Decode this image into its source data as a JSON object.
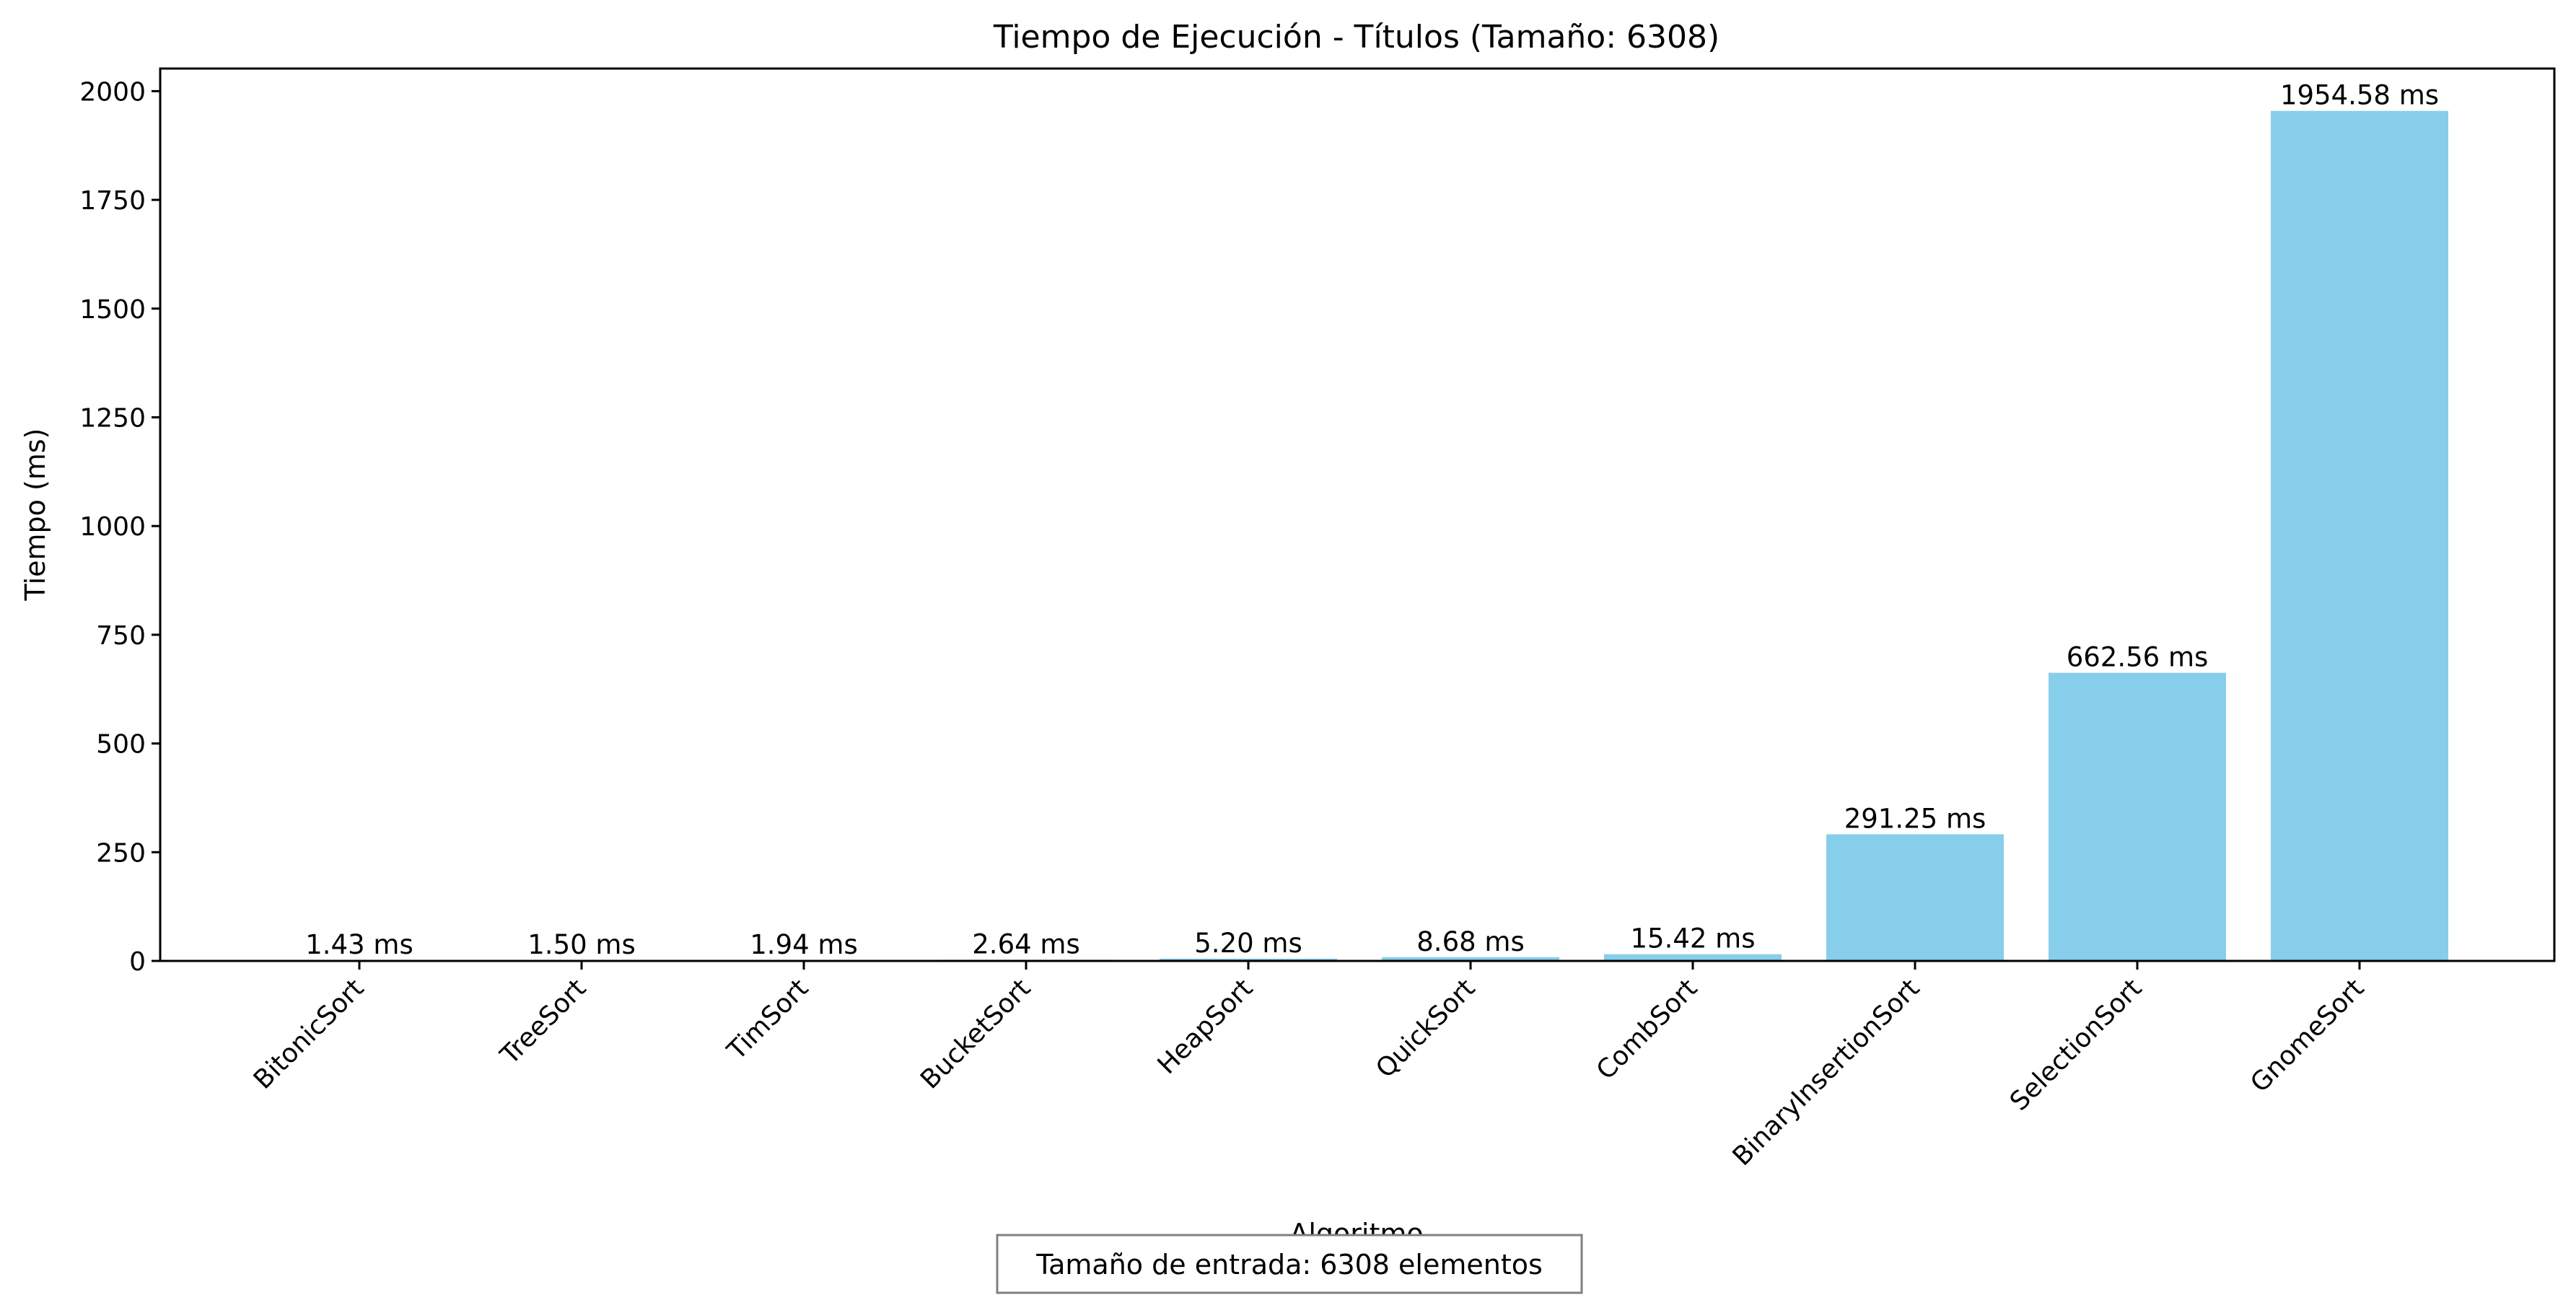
{
  "chart_data": {
    "type": "bar",
    "title": "Tiempo de Ejecución - Títulos (Tamaño: 6308)",
    "xlabel": "Algoritmo",
    "ylabel": "Tiempo (ms)",
    "categories": [
      "BitonicSort",
      "TreeSort",
      "TimSort",
      "BucketSort",
      "HeapSort",
      "QuickSort",
      "CombSort",
      "BinaryInsertionSort",
      "SelectionSort",
      "GnomeSort"
    ],
    "values": [
      1.43,
      1.5,
      1.94,
      2.64,
      5.2,
      8.68,
      15.42,
      291.25,
      662.56,
      1954.58
    ],
    "value_labels": [
      "1.43 ms",
      "1.50 ms",
      "1.94 ms",
      "2.64 ms",
      "5.20 ms",
      "8.68 ms",
      "15.42 ms",
      "291.25 ms",
      "662.56 ms",
      "1954.58 ms"
    ],
    "yticks": [
      0,
      250,
      500,
      750,
      1000,
      1250,
      1500,
      1750,
      2000
    ],
    "ytick_labels": [
      "0",
      "250",
      "500",
      "750",
      "1000",
      "1250",
      "1500",
      "1750",
      "2000"
    ],
    "ylim": [
      0,
      2052
    ],
    "bar_color": "#87ceeb",
    "grid": false,
    "legend": "none",
    "annotation": "Tamaño de entrada: 6308 elementos"
  }
}
